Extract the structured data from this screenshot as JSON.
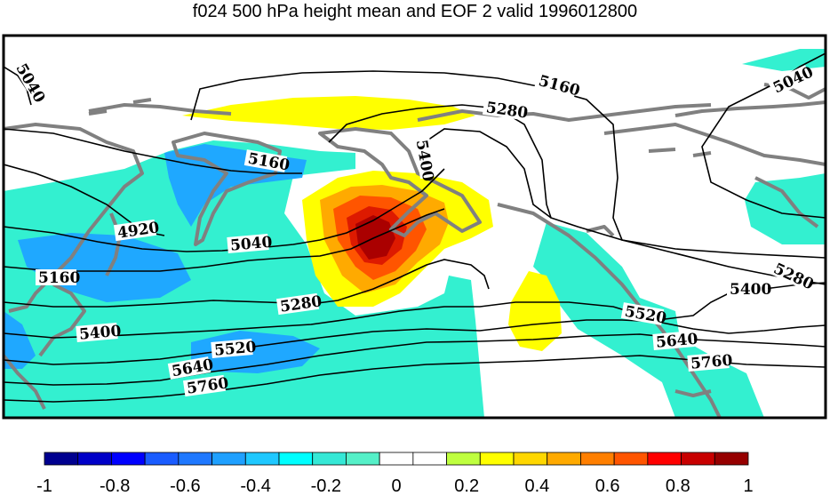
{
  "title": "f024 500 hPa height mean and EOF 2 valid 1996012800",
  "contour_labels": [
    "5040",
    "5160",
    "5280",
    "5400",
    "5160",
    "4920",
    "5040",
    "5160",
    "5280",
    "5400",
    "5520",
    "5640",
    "5760",
    "5040",
    "5280",
    "5400",
    "5520",
    "5640",
    "5760"
  ],
  "colorbar": {
    "ticks": [
      "-1",
      "-0.8",
      "-0.6",
      "-0.4",
      "-0.2",
      "0",
      "0.2",
      "0.4",
      "0.6",
      "0.8",
      "1"
    ],
    "colors": [
      "#00008f",
      "#0000c8",
      "#0000ff",
      "#1a5cff",
      "#1f78ff",
      "#1fa0ff",
      "#1fc8ff",
      "#00ffff",
      "#35e8d6",
      "#55f0c8",
      "#ffffff",
      "#ffffff",
      "#bfff3f",
      "#ffff00",
      "#ffd700",
      "#ffaa00",
      "#ff7f00",
      "#ff5500",
      "#ff0000",
      "#c80000",
      "#960000"
    ]
  },
  "colors": {
    "coast": "#808080",
    "contour": "#000000",
    "shade_lightneg": "#33f0d0",
    "shade_neg": "#1fa8ff",
    "shade_pos": "#ffff00"
  }
}
